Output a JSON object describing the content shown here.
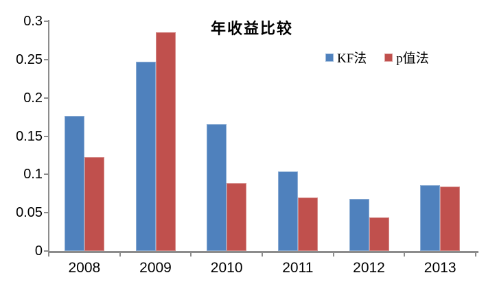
{
  "colors": {
    "series_kf": "#4F81BD",
    "series_p": "#C0504D",
    "axis": "#8C8C8C",
    "text": "#000000",
    "background": "#FFFFFF"
  },
  "chart_data": {
    "type": "bar",
    "title": "年收益比较",
    "categories": [
      "2008",
      "2009",
      "2010",
      "2011",
      "2012",
      "2013"
    ],
    "series": [
      {
        "name": "KF法",
        "color": "#4F81BD",
        "values": [
          0.176,
          0.247,
          0.166,
          0.104,
          0.068,
          0.086
        ]
      },
      {
        "name": "p值法",
        "color": "#C0504D",
        "values": [
          0.123,
          0.286,
          0.089,
          0.07,
          0.044,
          0.084
        ]
      }
    ],
    "xlabel": "",
    "ylabel": "",
    "ylim": [
      0,
      0.3
    ],
    "ytick_labels": [
      "0",
      "0.05",
      "0.1",
      "0.15",
      "0.2",
      "0.25",
      "0.3"
    ],
    "grid": false,
    "legend_position": "top-right-inside"
  }
}
